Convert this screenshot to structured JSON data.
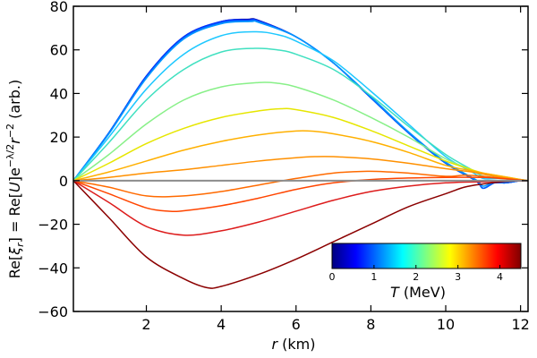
{
  "chart_data": {
    "type": "line",
    "xlabel": "r (km)",
    "xlabel_var": "r",
    "xlabel_unit": " (km)",
    "ylabel": "Re[ξr] = Re[U]e^(−λ/2) r^(−2) (arb.)",
    "ylabel_parts": {
      "pre": "Re[",
      "xi": "ξ",
      "xi_sub": "r",
      "mid": "] = Re[",
      "u": "U",
      "post1": "]e",
      "exp": "−λ/2",
      "r": "r",
      "exp2": "−2",
      "tail": " (arb.)"
    },
    "xlim": [
      0.05,
      12.2
    ],
    "ylim": [
      -60,
      80
    ],
    "xticks": [
      2,
      4,
      6,
      8,
      10,
      12
    ],
    "yticks": [
      -60,
      -40,
      -20,
      0,
      20,
      40,
      60,
      80
    ],
    "zero_line_color": "#8c8c8c",
    "colorbar": {
      "label": "T (MeV)",
      "label_var": "T",
      "label_unit": " (MeV)",
      "range": [
        0,
        4.5
      ],
      "ticks": [
        0,
        1,
        2,
        3,
        4
      ],
      "placement": "lower-right"
    },
    "series": [
      {
        "name": "T=0.0 MeV",
        "T": 0.0,
        "color": "#00009f",
        "points": [
          [
            0.05,
            0
          ],
          [
            1,
            22
          ],
          [
            2,
            48
          ],
          [
            3,
            66
          ],
          [
            4,
            73
          ],
          [
            4.7,
            74
          ],
          [
            5,
            73.5
          ],
          [
            6,
            66
          ],
          [
            7,
            54
          ],
          [
            8,
            38
          ],
          [
            9,
            22
          ],
          [
            10,
            8
          ],
          [
            10.8,
            0
          ],
          [
            11,
            -3.5
          ],
          [
            11.3,
            -1
          ],
          [
            11.6,
            -1
          ],
          [
            12,
            0
          ],
          [
            12.2,
            0
          ]
        ]
      },
      {
        "name": "T=0.5 MeV",
        "T": 0.5,
        "color": "#0030ff",
        "points": [
          [
            0.05,
            0
          ],
          [
            1,
            22
          ],
          [
            2,
            48
          ],
          [
            3,
            66
          ],
          [
            4,
            73
          ],
          [
            4.7,
            73.7
          ],
          [
            5,
            73.3
          ],
          [
            6,
            66
          ],
          [
            7,
            54
          ],
          [
            8,
            38
          ],
          [
            9,
            22
          ],
          [
            10,
            8
          ],
          [
            10.8,
            0
          ],
          [
            11,
            -3.5
          ],
          [
            11.3,
            -1
          ],
          [
            11.6,
            -1
          ],
          [
            12,
            0
          ],
          [
            12.2,
            0
          ]
        ]
      },
      {
        "name": "T=1.0 MeV",
        "T": 1.0,
        "color": "#0064ff",
        "points": [
          [
            0.05,
            0
          ],
          [
            1,
            22
          ],
          [
            2,
            47.5
          ],
          [
            3,
            65.5
          ],
          [
            4,
            72.5
          ],
          [
            4.7,
            73.3
          ],
          [
            5,
            73
          ],
          [
            6,
            66
          ],
          [
            7,
            54
          ],
          [
            8,
            38
          ],
          [
            9,
            22
          ],
          [
            10,
            8
          ],
          [
            10.8,
            0
          ],
          [
            11,
            -3.5
          ],
          [
            11.3,
            -1
          ],
          [
            11.6,
            -1
          ],
          [
            12,
            0
          ],
          [
            12.2,
            0
          ]
        ]
      },
      {
        "name": "T=1.5 MeV",
        "T": 1.5,
        "color": "#0096ff",
        "points": [
          [
            0.05,
            0
          ],
          [
            1,
            21.5
          ],
          [
            2,
            47
          ],
          [
            3,
            65
          ],
          [
            4,
            72
          ],
          [
            4.8,
            73
          ],
          [
            5,
            72.6
          ],
          [
            6,
            66
          ],
          [
            7,
            54
          ],
          [
            8,
            38.5
          ],
          [
            9,
            22.5
          ],
          [
            10,
            8.5
          ],
          [
            10.8,
            0.5
          ],
          [
            11,
            -2.5
          ],
          [
            11.3,
            -0.5
          ],
          [
            11.6,
            -0.5
          ],
          [
            12,
            0
          ],
          [
            12.2,
            0
          ]
        ]
      },
      {
        "name": "T=2.0 MeV",
        "T": 2.0,
        "color": "#1ec8ff",
        "points": [
          [
            0.05,
            0
          ],
          [
            1,
            20
          ],
          [
            2,
            42
          ],
          [
            3,
            58
          ],
          [
            4,
            66.5
          ],
          [
            4.9,
            68.3
          ],
          [
            5.5,
            67
          ],
          [
            6,
            64
          ],
          [
            7,
            55
          ],
          [
            8,
            41
          ],
          [
            9,
            26
          ],
          [
            10,
            11
          ],
          [
            10.7,
            4
          ],
          [
            11,
            1
          ],
          [
            11.4,
            1
          ],
          [
            11.8,
            0.5
          ],
          [
            12.2,
            0
          ]
        ]
      },
      {
        "name": "T=2.5 MeV",
        "T": 2.5,
        "color": "#40e0c0",
        "points": [
          [
            0.05,
            0
          ],
          [
            1,
            17.5
          ],
          [
            2,
            37
          ],
          [
            3,
            51
          ],
          [
            4,
            59
          ],
          [
            4.9,
            60.7
          ],
          [
            5.5,
            60
          ],
          [
            6,
            58
          ],
          [
            7,
            51
          ],
          [
            8,
            39
          ],
          [
            9,
            25
          ],
          [
            10,
            12
          ],
          [
            10.7,
            5
          ],
          [
            11,
            2
          ],
          [
            11.5,
            1
          ],
          [
            12,
            0.3
          ],
          [
            12.2,
            0
          ]
        ]
      },
      {
        "name": "T=3.0 MeV",
        "T": 3.0,
        "color": "#88f088",
        "points": [
          [
            0.05,
            0
          ],
          [
            1,
            12
          ],
          [
            2,
            26
          ],
          [
            3,
            37
          ],
          [
            4,
            43
          ],
          [
            5,
            45
          ],
          [
            5.5,
            44.7
          ],
          [
            6,
            43
          ],
          [
            7,
            37
          ],
          [
            8,
            29
          ],
          [
            9,
            20
          ],
          [
            10,
            10
          ],
          [
            10.7,
            5
          ],
          [
            11,
            3
          ],
          [
            11.5,
            1.5
          ],
          [
            12,
            0.5
          ],
          [
            12.2,
            0
          ]
        ]
      },
      {
        "name": "T=3.5 MeV",
        "T": 3.5,
        "color": "#e6e600",
        "points": [
          [
            0.05,
            0
          ],
          [
            1,
            8
          ],
          [
            2,
            17
          ],
          [
            3,
            24
          ],
          [
            4,
            29
          ],
          [
            5,
            32
          ],
          [
            5.6,
            33
          ],
          [
            6,
            32.6
          ],
          [
            7,
            29
          ],
          [
            8,
            23
          ],
          [
            9,
            16
          ],
          [
            10,
            9
          ],
          [
            10.7,
            5
          ],
          [
            11,
            3.5
          ],
          [
            11.5,
            2
          ],
          [
            12,
            0.5
          ],
          [
            12.2,
            0
          ]
        ]
      },
      {
        "name": "T=3.8 MeV",
        "T": 3.8,
        "color": "#ffb000",
        "points": [
          [
            0.05,
            0
          ],
          [
            1,
            4
          ],
          [
            2,
            9
          ],
          [
            3,
            14
          ],
          [
            4,
            18
          ],
          [
            5,
            21
          ],
          [
            6,
            22.8
          ],
          [
            6.5,
            22.6
          ],
          [
            7,
            21.5
          ],
          [
            8,
            18
          ],
          [
            9,
            13
          ],
          [
            10,
            7
          ],
          [
            10.7,
            4.5
          ],
          [
            11,
            3.5
          ],
          [
            11.5,
            2
          ],
          [
            12,
            0.5
          ],
          [
            12.2,
            0
          ]
        ]
      },
      {
        "name": "T=4.0 MeV",
        "T": 4.0,
        "color": "#ff9000",
        "points": [
          [
            0.05,
            0
          ],
          [
            1,
            1.5
          ],
          [
            2,
            3.5
          ],
          [
            3,
            5
          ],
          [
            4,
            7
          ],
          [
            5,
            9
          ],
          [
            6,
            10.5
          ],
          [
            6.5,
            11
          ],
          [
            7,
            11
          ],
          [
            8,
            10
          ],
          [
            9,
            8
          ],
          [
            10,
            5.5
          ],
          [
            10.7,
            4
          ],
          [
            11,
            3
          ],
          [
            11.5,
            1.5
          ],
          [
            12,
            0.3
          ],
          [
            12.2,
            0
          ]
        ]
      },
      {
        "name": "T=4.2 MeV",
        "T": 4.2,
        "color": "#ff6a00",
        "points": [
          [
            0.05,
            0
          ],
          [
            1,
            -3
          ],
          [
            2,
            -7
          ],
          [
            3,
            -7
          ],
          [
            4,
            -5
          ],
          [
            5,
            -2
          ],
          [
            6,
            1
          ],
          [
            7,
            3.5
          ],
          [
            7.9,
            4.3
          ],
          [
            8.5,
            4
          ],
          [
            9,
            3.5
          ],
          [
            10,
            2
          ],
          [
            10.5,
            2.5
          ],
          [
            11,
            2
          ],
          [
            11.5,
            1
          ],
          [
            12,
            0.3
          ],
          [
            12.2,
            0
          ]
        ]
      },
      {
        "name": "T=4.3 MeV",
        "T": 4.3,
        "color": "#ff4500",
        "points": [
          [
            0.05,
            0
          ],
          [
            1,
            -6
          ],
          [
            2,
            -12.5
          ],
          [
            2.6,
            -14
          ],
          [
            3,
            -13.8
          ],
          [
            4,
            -11.5
          ],
          [
            5,
            -8
          ],
          [
            6,
            -4
          ],
          [
            7,
            -1
          ],
          [
            8,
            0.5
          ],
          [
            9,
            1.2
          ],
          [
            10,
            1.5
          ],
          [
            11,
            1.5
          ],
          [
            11.5,
            1
          ],
          [
            12,
            0.2
          ],
          [
            12.2,
            0
          ]
        ]
      },
      {
        "name": "T=4.4 MeV",
        "T": 4.4,
        "color": "#dd1c1c",
        "points": [
          [
            0.05,
            0
          ],
          [
            1,
            -10
          ],
          [
            2,
            -21
          ],
          [
            3,
            -25
          ],
          [
            4,
            -23
          ],
          [
            5,
            -19
          ],
          [
            6,
            -14
          ],
          [
            7,
            -9
          ],
          [
            8,
            -5
          ],
          [
            9,
            -2.5
          ],
          [
            10,
            -1
          ],
          [
            11,
            -0.5
          ],
          [
            11.5,
            -0.3
          ],
          [
            12,
            -0.1
          ],
          [
            12.2,
            0
          ]
        ]
      },
      {
        "name": "T=4.5 MeV",
        "T": 4.5,
        "color": "#8b0000",
        "points": [
          [
            0.05,
            0
          ],
          [
            1,
            -17
          ],
          [
            2,
            -35
          ],
          [
            3,
            -45
          ],
          [
            3.6,
            -49
          ],
          [
            4,
            -48.5
          ],
          [
            5,
            -43
          ],
          [
            6,
            -36
          ],
          [
            7,
            -28
          ],
          [
            8,
            -20
          ],
          [
            9,
            -12
          ],
          [
            10,
            -6
          ],
          [
            10.5,
            -3
          ],
          [
            11,
            -1.5
          ],
          [
            11.5,
            -0.5
          ],
          [
            12,
            0
          ],
          [
            12.2,
            0
          ]
        ]
      }
    ]
  }
}
